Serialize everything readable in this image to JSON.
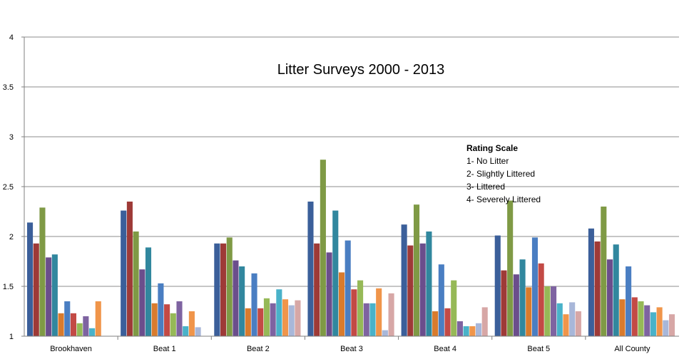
{
  "colors": {
    "gridline": "#8c8c8c",
    "axis": "#7f7f7f",
    "palette": [
      "#3b5f9a",
      "#9e3a37",
      "#7f9a45",
      "#6b4e8c",
      "#31879e",
      "#d97b2d",
      "#4a7ec2",
      "#c34a45",
      "#96b957",
      "#7e63a1",
      "#49b2c9",
      "#f0954a",
      "#a8b7d9",
      "#d7a7a6"
    ]
  },
  "chart_data": {
    "type": "bar",
    "title": "Litter Surveys 2000 - 2013",
    "xlabel": "",
    "ylabel": "",
    "ylim": [
      1,
      4
    ],
    "yticks": [
      "1",
      "1.5",
      "2",
      "2.5",
      "3",
      "3.5",
      "4"
    ],
    "grid": true,
    "categories": [
      "Brookhaven",
      "Beat 1",
      "Beat 2",
      "Beat 3",
      "Beat 4",
      "Beat 5",
      "All County"
    ],
    "series": [
      {
        "values": [
          2.14,
          2.26,
          1.93,
          2.35,
          2.12,
          2.01,
          2.08
        ]
      },
      {
        "values": [
          1.93,
          2.35,
          1.93,
          1.93,
          1.91,
          1.66,
          1.95
        ]
      },
      {
        "values": [
          2.29,
          2.05,
          1.99,
          2.77,
          2.32,
          2.36,
          2.3
        ]
      },
      {
        "values": [
          1.79,
          1.67,
          1.76,
          1.84,
          1.93,
          1.62,
          1.77
        ]
      },
      {
        "values": [
          1.82,
          1.89,
          1.7,
          2.26,
          2.05,
          1.77,
          1.92
        ]
      },
      {
        "values": [
          1.23,
          1.33,
          1.28,
          1.64,
          1.25,
          1.49,
          1.37
        ]
      },
      {
        "values": [
          1.35,
          1.53,
          1.63,
          1.96,
          1.72,
          1.99,
          1.7
        ]
      },
      {
        "values": [
          1.23,
          1.32,
          1.28,
          1.47,
          1.28,
          1.73,
          1.39
        ]
      },
      {
        "values": [
          1.13,
          1.23,
          1.38,
          1.56,
          1.56,
          1.5,
          1.35
        ]
      },
      {
        "values": [
          1.2,
          1.35,
          1.33,
          1.33,
          1.15,
          1.5,
          1.31
        ]
      },
      {
        "values": [
          1.08,
          1.1,
          1.47,
          1.33,
          1.1,
          1.33,
          1.24
        ]
      },
      {
        "values": [
          1.35,
          1.25,
          1.37,
          1.48,
          1.1,
          1.22,
          1.29
        ]
      },
      {
        "values": [
          null,
          1.09,
          1.31,
          1.06,
          1.13,
          1.34,
          1.16
        ]
      },
      {
        "values": [
          null,
          null,
          1.36,
          1.43,
          1.29,
          1.25,
          1.22
        ]
      }
    ],
    "annotation": {
      "title": "Rating Scale",
      "lines": [
        "1- No Litter",
        "2- Slightly Littered",
        "3- Littered",
        "4- Severely Littered"
      ]
    }
  }
}
